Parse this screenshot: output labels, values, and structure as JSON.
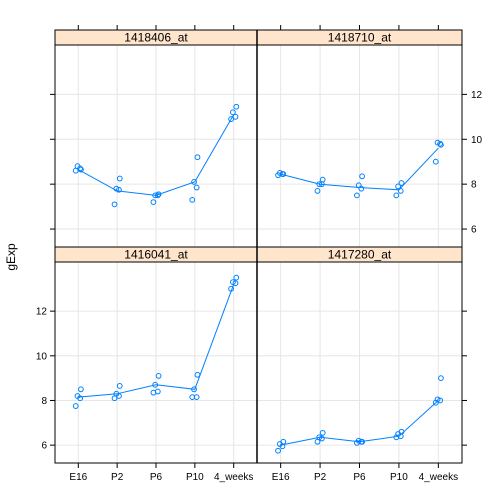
{
  "chart_data": {
    "type": "scatter",
    "ylabel": "gExp",
    "xlabel": "",
    "categories": [
      "E16",
      "P2",
      "P6",
      "P10",
      "4_weeks"
    ],
    "ylim": [
      5.2,
      14.2
    ],
    "yticks": [
      6,
      8,
      10,
      12
    ],
    "grid": true,
    "color": "#0080ff",
    "panels": [
      {
        "title": "1418406_at",
        "means": [
          8.65,
          7.7,
          7.5,
          8.1,
          11.1
        ],
        "points": [
          [
            8.6,
            8.7,
            8.8,
            8.65
          ],
          [
            7.1,
            7.75,
            7.8,
            8.25
          ],
          [
            7.2,
            7.5,
            7.5,
            7.55
          ],
          [
            7.3,
            7.85,
            8.1,
            9.2
          ],
          [
            10.9,
            11.0,
            11.2,
            11.45
          ]
        ]
      },
      {
        "title": "1418710_at",
        "means": [
          8.45,
          8.0,
          7.85,
          7.75,
          9.6
        ],
        "points": [
          [
            8.4,
            8.45,
            8.5,
            8.45
          ],
          [
            7.7,
            8.0,
            8.0,
            8.2
          ],
          [
            7.5,
            7.8,
            7.95,
            8.35
          ],
          [
            7.5,
            7.7,
            7.9,
            8.05
          ],
          [
            9.0,
            9.8,
            9.85,
            9.75
          ]
        ]
      },
      {
        "title": "1416041_at",
        "means": [
          8.15,
          8.3,
          8.7,
          8.5,
          13.2
        ],
        "points": [
          [
            7.75,
            8.1,
            8.2,
            8.5
          ],
          [
            8.1,
            8.2,
            8.3,
            8.65
          ],
          [
            8.35,
            8.4,
            8.7,
            9.1
          ],
          [
            8.15,
            8.15,
            8.5,
            9.15
          ],
          [
            13.0,
            13.25,
            13.3,
            13.5
          ]
        ]
      },
      {
        "title": "1417280_at",
        "means": [
          6.0,
          6.35,
          6.15,
          6.4,
          8.0
        ],
        "points": [
          [
            5.75,
            5.95,
            6.05,
            6.15
          ],
          [
            6.15,
            6.3,
            6.35,
            6.55
          ],
          [
            6.1,
            6.15,
            6.2,
            6.15
          ],
          [
            6.35,
            6.4,
            6.5,
            6.6
          ],
          [
            7.9,
            8.0,
            8.05,
            9.0
          ]
        ]
      }
    ]
  }
}
